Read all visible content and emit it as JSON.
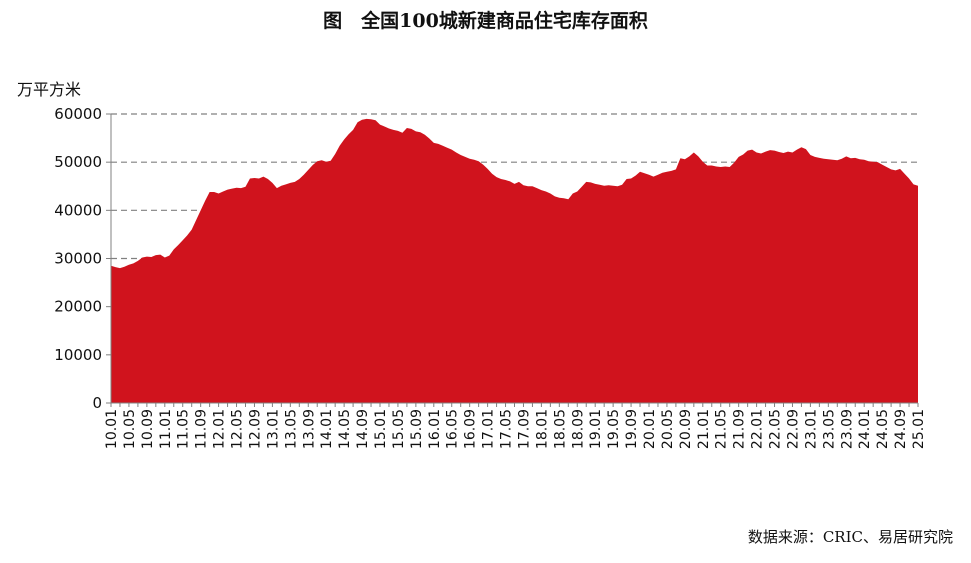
{
  "header": {
    "title": "图　全国100城新建商品住宅库存面积"
  },
  "footer": {
    "source": "数据来源：CRIC、易居研究院"
  },
  "colors": {
    "area": "#d0131d",
    "grid": "#808080",
    "axis": "#808080"
  },
  "chart_data": {
    "type": "area",
    "title": "图　全国100城新建商品住宅库存面积",
    "ylabel": "万平方米",
    "xlabel": "",
    "ylim": [
      0,
      60000
    ],
    "yticks": [
      0,
      10000,
      20000,
      30000,
      40000,
      50000,
      60000
    ],
    "grid": "horizontal dashed",
    "legend": "none",
    "xtick_labels": [
      "10.01",
      "10.05",
      "10.09",
      "11.01",
      "11.05",
      "11.09",
      "12.01",
      "12.05",
      "12.09",
      "13.01",
      "13.05",
      "13.09",
      "14.01",
      "14.05",
      "14.09",
      "15.01",
      "15.05",
      "15.09",
      "16.01",
      "16.05",
      "16.09",
      "17.01",
      "17.05",
      "17.09",
      "18.01",
      "18.05",
      "18.09",
      "19.01",
      "19.05",
      "19.09",
      "20.01",
      "20.05",
      "20.09",
      "21.01",
      "21.05",
      "21.09",
      "22.01",
      "22.05",
      "22.09",
      "23.01",
      "23.05",
      "23.09",
      "24.01",
      "24.05",
      "24.09",
      "25.01"
    ],
    "series": [
      {
        "values": [
          28500,
          28200,
          28000,
          28300,
          28700,
          29000,
          29500,
          30200,
          30400,
          30300,
          30700,
          30800,
          30200,
          30600,
          31900,
          32800,
          33800,
          34800,
          36000,
          38000,
          40000,
          42000,
          43800,
          43800,
          43500,
          43900,
          44300,
          44500,
          44700,
          44600,
          44900,
          46600,
          46700,
          46600,
          47000,
          46500,
          45700,
          44600,
          45100,
          45400,
          45700,
          45900,
          46500,
          47400,
          48400,
          49400,
          50200,
          50400,
          50100,
          50300,
          51700,
          53400,
          54700,
          55800,
          56700,
          58300,
          58800,
          59000,
          58900,
          58700,
          57800,
          57400,
          57000,
          56700,
          56500,
          56100,
          57100,
          56900,
          56400,
          56200,
          55700,
          54900,
          54000,
          53800,
          53400,
          53000,
          52600,
          52000,
          51500,
          51100,
          50700,
          50500,
          50200,
          49500,
          48600,
          47600,
          46900,
          46500,
          46300,
          46000,
          45500,
          45900,
          45200,
          45000,
          45000,
          44600,
          44200,
          43900,
          43500,
          42900,
          42600,
          42500,
          42300,
          43500,
          43900,
          44900,
          45900,
          45800,
          45500,
          45300,
          45100,
          45200,
          45100,
          45000,
          45300,
          46500,
          46600,
          47200,
          48000,
          47700,
          47400,
          47000,
          47400,
          47800,
          48000,
          48200,
          48500,
          50800,
          50600,
          51200,
          52000,
          51200,
          50100,
          49300,
          49300,
          49100,
          49000,
          49100,
          49000,
          49900,
          51100,
          51600,
          52400,
          52600,
          52000,
          51800,
          52200,
          52500,
          52400,
          52100,
          51900,
          52200,
          52000,
          52600,
          53100,
          52700,
          51500,
          51100,
          50900,
          50700,
          50600,
          50500,
          50400,
          50700,
          51200,
          50800,
          50900,
          50600,
          50500,
          50200,
          50100,
          50000,
          49500,
          49000,
          48500,
          48300,
          48600,
          47600,
          46600,
          45400,
          45100
        ]
      }
    ]
  }
}
